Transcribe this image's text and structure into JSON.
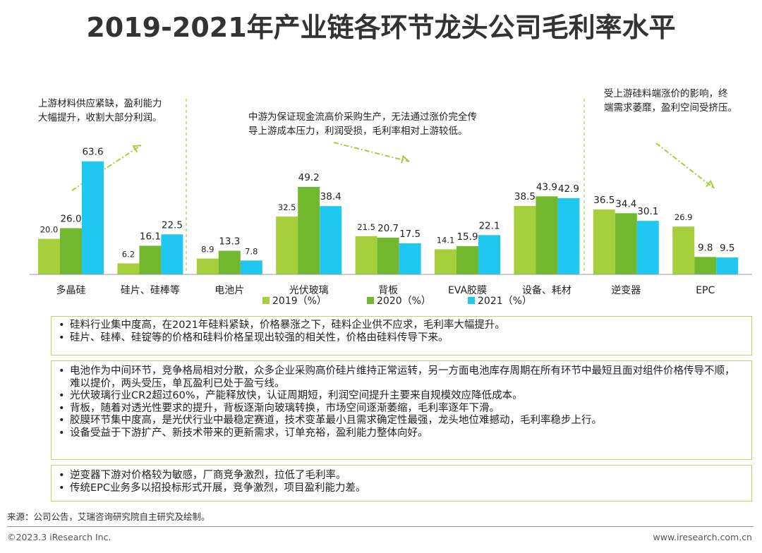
{
  "title": "2019-2021年产业链各环节龙头公司毛利率水平",
  "chart_data": {
    "type": "bar",
    "categories": [
      "多晶硅",
      "硅片、硅棒等",
      "电池片",
      "光伏玻璃",
      "背板",
      "EVA胶膜",
      "设备、耗材",
      "逆变器",
      "EPC"
    ],
    "series": [
      {
        "name": "2019（%）",
        "color": "#a6cf3c",
        "values": [
          20.0,
          6.2,
          8.9,
          32.5,
          21.5,
          14.1,
          38.5,
          36.5,
          26.9
        ]
      },
      {
        "name": "2020（%）",
        "color": "#72b82f",
        "values": [
          26.0,
          16.1,
          13.3,
          49.2,
          20.7,
          15.9,
          43.9,
          34.4,
          9.8
        ]
      },
      {
        "name": "2021（%）",
        "color": "#1ec8f0",
        "values": [
          63.6,
          22.5,
          7.8,
          38.4,
          17.5,
          22.1,
          42.9,
          30.1,
          9.5
        ]
      }
    ],
    "labels": [
      [
        "20.0",
        "26.0",
        "63.6"
      ],
      [
        "6.2",
        "16.1",
        "22.5"
      ],
      [
        "8.9",
        "13.3",
        "7.8"
      ],
      [
        "32.5",
        "49.2",
        "38.4"
      ],
      [
        "21.5",
        "20.7",
        "17.5"
      ],
      [
        "14.1",
        "15.9",
        "22.1"
      ],
      [
        "38.5",
        "43.9",
        "42.9"
      ],
      [
        "36.5",
        "34.4",
        "30.1"
      ],
      [
        "26.9",
        "9.8",
        "9.5"
      ]
    ],
    "ylim": [
      0,
      70
    ],
    "legend": "bottom-center",
    "annotations": [
      [
        "上游材料供应紧缺，盈利能力",
        "大幅提升，收割大部分利润。"
      ],
      [
        "中游为保证现金流高价采购生产，无法通过涨价完全传",
        "导上游成本压力，利润受损，毛利率相对上游较低。"
      ],
      [
        "受上游硅料端涨价的影响，终",
        "端需求萎靡，盈利空间受挤压。"
      ]
    ]
  },
  "boxes": [
    [
      "硅料行业集中度高，在2021年硅料紧缺，价格暴涨之下，硅料企业供不应求，毛利率大幅提升。",
      "硅片、硅棒、硅锭等的价格和硅料价格呈现出较强的相关性，价格由硅料传导下来。"
    ],
    [
      "电池作为中间环节，竞争格局相对分散，众多企业采购高价硅片维持正常运转，另一方面电池库存周期在所有环节中最短且面对组件价格传导不顺，难以提价，两头受压，单瓦盈利已处于盈亏线。",
      "光伏玻璃行业CR2超过60%，产能释放快，认证周期短，利润空间提升主要来自规模效应降低成本。",
      "背板，随着对透光性要求的提升，背板逐渐向玻璃转换，市场空间逐渐萎缩，毛利率逐年下滑。",
      "胶膜环节集中度高，是光伏行业中最稳定赛道，技术变革最小且需求确定性最强，龙头地位难撼动，毛利率稳步上行。",
      "设备受益于下游扩产、新技术带来的更新需求，订单充裕，盈利能力整体向好。"
    ],
    [
      "逆变器下游对价格较为敏感，厂商竞争激烈，拉低了毛利率。",
      "传统EPC业务多以招投标形式开展，竞争激烈，项目盈利能力差。"
    ]
  ],
  "source": "来源：公司公告，艾瑞咨询研究院自主研究及绘制。",
  "footer": {
    "copyright": "©2023.3 iResearch Inc.",
    "url": "www.iresearch.com.cn"
  }
}
